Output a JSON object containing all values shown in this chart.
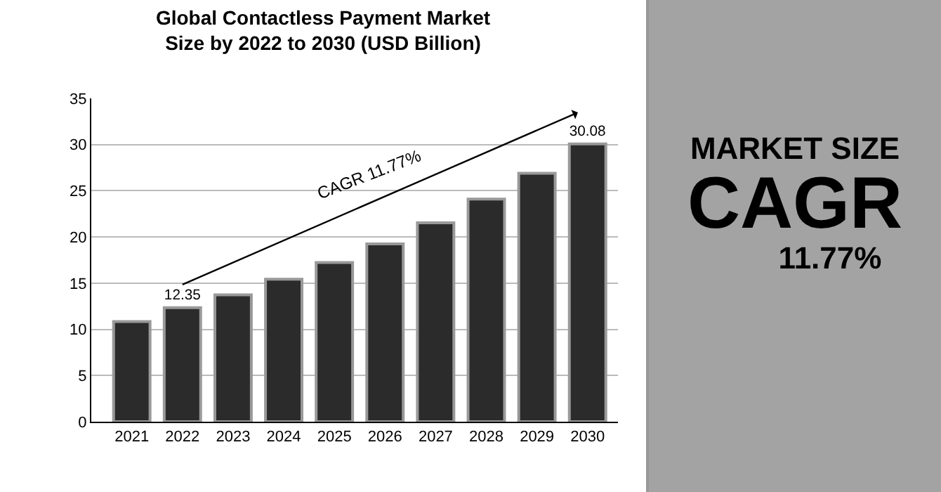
{
  "chart_data": {
    "type": "bar",
    "title": "Global Contactless Payment Market Size by 2022 to 2030 (USD Billion)",
    "categories": [
      "2021",
      "2022",
      "2023",
      "2024",
      "2025",
      "2026",
      "2027",
      "2028",
      "2029",
      "2030"
    ],
    "values": [
      10.85,
      12.35,
      13.74,
      15.43,
      17.23,
      19.25,
      21.54,
      24.1,
      26.9,
      30.08
    ],
    "value_labels": [
      null,
      "12.35",
      null,
      null,
      null,
      null,
      null,
      null,
      null,
      "30.08"
    ],
    "color": "#2b2b2b",
    "ylim": [
      0,
      35
    ],
    "yticks": [
      0,
      5,
      10,
      15,
      20,
      25,
      30,
      35
    ],
    "grid": "y",
    "annotations": [
      "CAGR 11.77%",
      "MARKET SIZE",
      "CAGR",
      "11.77%"
    ]
  }
}
